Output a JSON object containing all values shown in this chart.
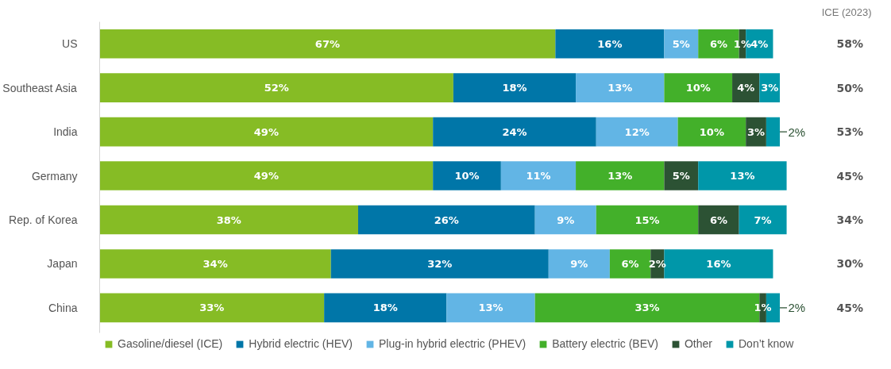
{
  "chart_data": {
    "type": "bar",
    "orientation": "horizontal",
    "stacked": true,
    "tick_labels": "y",
    "legend": "bottom",
    "categories": [
      "US",
      "Southeast Asia",
      "India",
      "Germany",
      "Rep. of Korea",
      "Japan",
      "China"
    ],
    "series": [
      {
        "name": "Gasoline/diesel (ICE)",
        "color": "#86bc25",
        "values": [
          67,
          52,
          49,
          49,
          38,
          34,
          33
        ],
        "value_labels": [
          "67%",
          "52%",
          "49%",
          "49%",
          "38%",
          "34%",
          "33%"
        ]
      },
      {
        "name": "Hybrid electric (HEV)",
        "color": "#0076a8",
        "values": [
          16,
          18,
          24,
          10,
          26,
          32,
          18
        ],
        "value_labels": [
          "16%",
          "18%",
          "24%",
          "10%",
          "26%",
          "32%",
          "18%"
        ]
      },
      {
        "name": "Plug-in hybrid electric (PHEV)",
        "color": "#62b5e5",
        "values": [
          5,
          13,
          12,
          11,
          9,
          9,
          13
        ],
        "value_labels": [
          "5%",
          "13%",
          "12%",
          "11%",
          "9%",
          "9%",
          "13%"
        ]
      },
      {
        "name": "Battery electric (BEV)",
        "color": "#43b02a",
        "values": [
          6,
          10,
          10,
          13,
          15,
          6,
          33
        ],
        "value_labels": [
          "6%",
          "10%",
          "10%",
          "13%",
          "15%",
          "6%",
          "33%"
        ]
      },
      {
        "name": "Other",
        "color": "#2c5234",
        "values": [
          1,
          4,
          3,
          5,
          6,
          2,
          1
        ],
        "value_labels": [
          "1%",
          "4%",
          "3%",
          "5%",
          "6%",
          "2%",
          "1%"
        ]
      },
      {
        "name": "Don’t know",
        "color": "#0097a9",
        "values": [
          4,
          3,
          2,
          13,
          7,
          16,
          2
        ],
        "value_labels": [
          "4%",
          "3%",
          "2%",
          "13%",
          "7%",
          "16%",
          "2%"
        ]
      }
    ],
    "annotations": [
      "ICE (2023)",
      "58%",
      "50%",
      "53%",
      "45%",
      "34%",
      "30%",
      "45%"
    ]
  }
}
